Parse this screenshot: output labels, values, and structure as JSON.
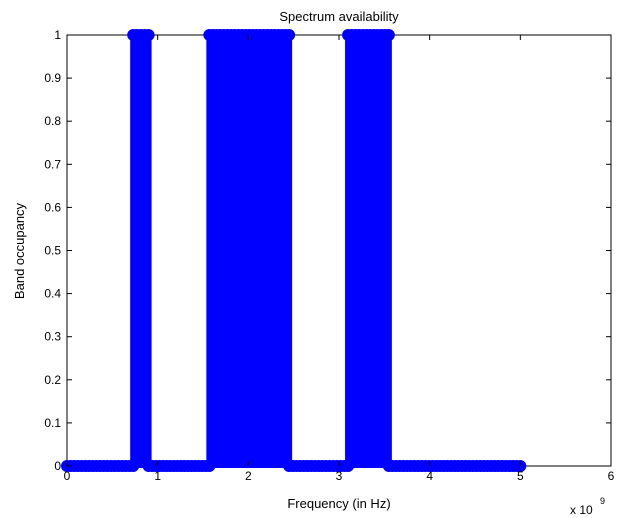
{
  "chart_data": {
    "type": "line",
    "title": "Spectrum availability",
    "xlabel": "Frequency (in Hz)",
    "ylabel": "Band occupancy",
    "x_multiplier_base": "x 10",
    "x_multiplier_exponent": "9",
    "xlim": [
      0,
      6
    ],
    "ylim": [
      0,
      1
    ],
    "x_ticks": [
      "0",
      "1",
      "2",
      "3",
      "4",
      "5",
      "6"
    ],
    "y_ticks": [
      "0",
      "0.1",
      "0.2",
      "0.3",
      "0.4",
      "0.5",
      "0.6",
      "0.7",
      "0.8",
      "0.9",
      "1"
    ],
    "grid": false,
    "legend": "none",
    "series": [
      {
        "color": "#0000ff",
        "marker": "circle",
        "x_unit_note": "x values in units of 1e9 Hz",
        "x": [
          0.0,
          0.73,
          0.73,
          0.9,
          0.9,
          1.57,
          1.57,
          2.45,
          2.45,
          3.1,
          3.1,
          3.55,
          3.55,
          5.0
        ],
        "y": [
          0,
          0,
          1,
          1,
          0,
          0,
          1,
          1,
          0,
          0,
          1,
          1,
          0,
          0
        ]
      }
    ],
    "dense_bars": [
      {
        "x_start": 0.73,
        "x_end": 0.9
      },
      {
        "x_start": 1.57,
        "x_end": 2.45
      },
      {
        "x_start": 3.1,
        "x_end": 3.55
      }
    ]
  }
}
